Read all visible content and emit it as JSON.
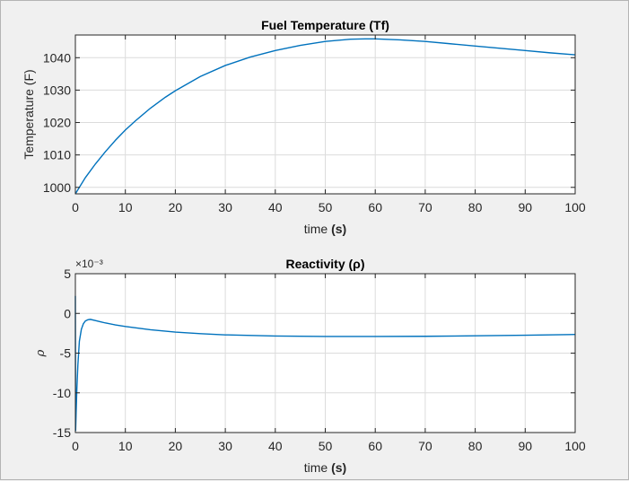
{
  "colors": {
    "background": "#f0f0f0",
    "axes_background": "#ffffff",
    "series": "#0072bd",
    "grid": "#dcdcdc"
  },
  "chart_data": [
    {
      "type": "line",
      "title": "Fuel Temperature (Tf)",
      "xlabel": "time",
      "xlabel_unit": "(s)",
      "ylabel": "Temperature (F)",
      "xlim": [
        0,
        100
      ],
      "ylim": [
        998,
        1047
      ],
      "xticks": [
        0,
        10,
        20,
        30,
        40,
        50,
        60,
        70,
        80,
        90,
        100
      ],
      "yticks": [
        1000,
        1010,
        1020,
        1030,
        1040
      ],
      "grid": true,
      "series": [
        {
          "x": [
            0,
            2,
            4,
            6,
            8,
            10,
            12,
            15,
            18,
            20,
            25,
            30,
            35,
            40,
            45,
            50,
            55,
            58,
            60,
            65,
            70,
            75,
            80,
            85,
            90,
            95,
            100
          ],
          "y": [
            998,
            1003,
            1007.2,
            1011,
            1014.5,
            1017.7,
            1020.5,
            1024.4,
            1027.8,
            1029.8,
            1034.2,
            1037.6,
            1040.2,
            1042.2,
            1043.8,
            1045.0,
            1045.7,
            1045.8,
            1045.8,
            1045.5,
            1045.0,
            1044.3,
            1043.6,
            1042.9,
            1042.2,
            1041.5,
            1040.9
          ]
        }
      ]
    },
    {
      "type": "line",
      "title": "Reactivity (ρ)",
      "xlabel": "time",
      "xlabel_unit": "(s)",
      "ylabel": "ρ",
      "y_exponent": "×10⁻³",
      "xlim": [
        0,
        100
      ],
      "ylim": [
        -15,
        5
      ],
      "xticks": [
        0,
        10,
        20,
        30,
        40,
        50,
        60,
        70,
        80,
        90,
        100
      ],
      "yticks": [
        5,
        0,
        -5,
        -10,
        -15
      ],
      "grid": true,
      "series": [
        {
          "x": [
            0,
            0.05,
            0.15,
            0.3,
            0.5,
            0.8,
            1.2,
            1.6,
            2.0,
            2.5,
            3.0,
            4,
            5,
            6,
            8,
            10,
            15,
            20,
            25,
            30,
            40,
            50,
            60,
            70,
            80,
            90,
            100
          ],
          "y": [
            2.2,
            -14.8,
            -12.5,
            -9.5,
            -6.5,
            -3.5,
            -2.0,
            -1.3,
            -0.95,
            -0.8,
            -0.75,
            -0.9,
            -1.05,
            -1.2,
            -1.45,
            -1.65,
            -2.05,
            -2.35,
            -2.55,
            -2.7,
            -2.85,
            -2.9,
            -2.9,
            -2.88,
            -2.82,
            -2.75,
            -2.65
          ]
        }
      ]
    }
  ]
}
